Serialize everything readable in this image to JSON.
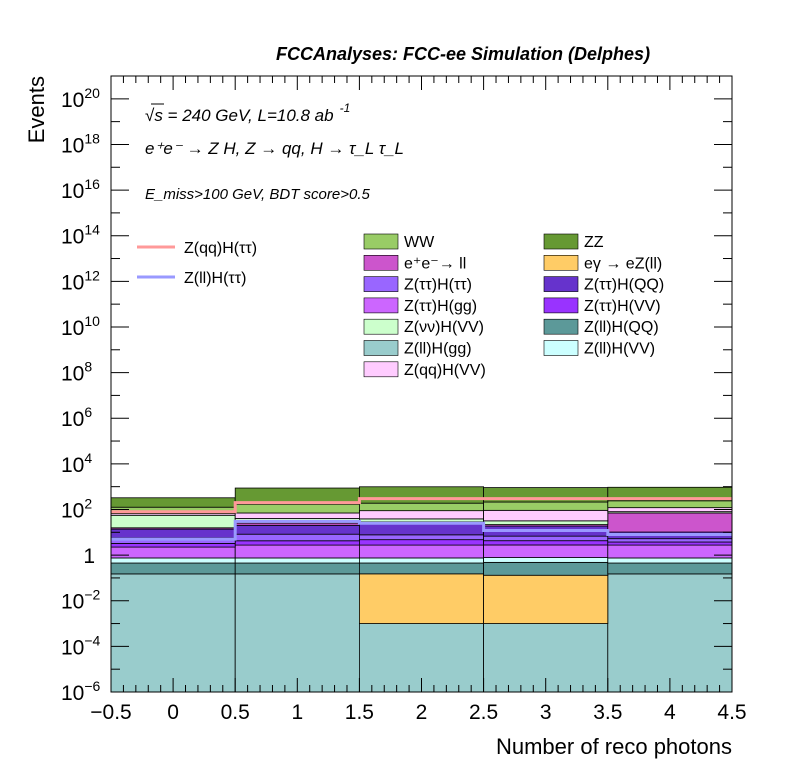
{
  "chart_data": {
    "type": "bar",
    "stacked": true,
    "title": "FCCAnalyses: FCC-ee Simulation (Delphes)",
    "xlabel": "Number of reco photons",
    "ylabel": "Events",
    "xlim": [
      -0.5,
      4.5
    ],
    "ylim": [
      1e-06,
      1e+21
    ],
    "yscale": "log",
    "grid": false,
    "x_ticks": [
      "−0.5",
      "0",
      "0.5",
      "1",
      "1.5",
      "2",
      "2.5",
      "3",
      "3.5",
      "4",
      "4.5"
    ],
    "y_tick_labels": [
      {
        "base": "10",
        "exp": "−6"
      },
      {
        "base": "10",
        "exp": "−4"
      },
      {
        "base": "10",
        "exp": "−2"
      },
      {
        "base": "1",
        "exp": ""
      },
      {
        "base": "10",
        "exp": "2"
      },
      {
        "base": "10",
        "exp": "4"
      },
      {
        "base": "10",
        "exp": "6"
      },
      {
        "base": "10",
        "exp": "8"
      },
      {
        "base": "10",
        "exp": "10"
      },
      {
        "base": "10",
        "exp": "12"
      },
      {
        "base": "10",
        "exp": "14"
      },
      {
        "base": "10",
        "exp": "16"
      },
      {
        "base": "10",
        "exp": "18"
      },
      {
        "base": "10",
        "exp": "20"
      }
    ],
    "annotations": {
      "line1": "√s = 240 GeV, L=10.8 ab",
      "line1_exp": "-1",
      "line2": "e⁺e⁻ → Z H, Z → qq, H → τ_L τ_L",
      "line3": "E_miss>100 GeV, BDT score>0.5"
    },
    "bins": [
      0,
      1,
      2,
      3,
      4
    ],
    "series": [
      {
        "name": "Z(ll)H(gg)",
        "color": "#99cccc",
        "values": [
          0.15,
          0.15,
          0.001,
          0.001,
          0.15
        ]
      },
      {
        "name": "eγ → eZ(ll)",
        "color": "#ffcc66",
        "values": [
          0,
          0,
          0.15,
          0.13,
          0
        ]
      },
      {
        "name": "Z(ll)H(QQ)",
        "color": "#5c9999",
        "values": [
          0.3,
          0.3,
          0.3,
          0.35,
          0.3
        ]
      },
      {
        "name": "Z(ll)H(VV)",
        "color": "#ccffff",
        "values": [
          0.3,
          0.3,
          0.3,
          0.3,
          0.3
        ]
      },
      {
        "name": "Z(ττ)H(gg)",
        "color": "#cc66ff",
        "values": [
          1.5,
          2,
          2,
          2,
          2
        ]
      },
      {
        "name": "Z(ττ)H(VV)",
        "color": "#9933ff",
        "values": [
          1.0,
          1.5,
          2,
          1.5,
          1
        ]
      },
      {
        "name": "Z(ττ)H(ττ)",
        "color": "#9966ff",
        "values": [
          2.5,
          4,
          3,
          2.5,
          1.5
        ]
      },
      {
        "name": "Z(ττ)H(QQ)",
        "color": "#6633cc",
        "values": [
          8,
          12,
          20,
          12,
          5
        ]
      },
      {
        "name": "e⁺e⁻→ ll",
        "color": "#cc55cc",
        "values": [
          2,
          5,
          1,
          3,
          60
        ]
      },
      {
        "name": "Z(νν)H(VV)",
        "color": "#ccffcc",
        "values": [
          40,
          15,
          10,
          10,
          10
        ]
      },
      {
        "name": "Z(qq)H(VV)",
        "color": "#ffccff",
        "values": [
          10,
          30,
          50,
          60,
          40
        ]
      },
      {
        "name": "WW",
        "color": "#99cc66",
        "values": [
          60,
          100,
          100,
          120,
          120
        ]
      },
      {
        "name": "ZZ",
        "color": "#669933",
        "values": [
          200,
          700,
          800,
          700,
          700
        ]
      }
    ],
    "lines": [
      {
        "name": "Z(qq)H(ττ)",
        "color": "#ff9999",
        "values": [
          80,
          200,
          300,
          300,
          300
        ]
      },
      {
        "name": "Z(ll)H(ττ)",
        "color": "#9999ff",
        "values": [
          5,
          30,
          25,
          12,
          8
        ]
      }
    ],
    "legend_left": [
      "Z(qq)H(ττ)",
      "Z(ll)H(ττ)"
    ],
    "legend_col1": [
      "WW",
      "e⁺e⁻→ ll",
      "Z(ττ)H(ττ)",
      "Z(ττ)H(gg)",
      "Z(νν)H(VV)",
      "Z(ll)H(gg)",
      "Z(qq)H(VV)"
    ],
    "legend_col2": [
      "ZZ",
      "eγ → eZ(ll)",
      "Z(ττ)H(QQ)",
      "Z(ττ)H(VV)",
      "Z(ll)H(QQ)",
      "Z(ll)H(VV)"
    ],
    "legend_placement": "top-right"
  }
}
